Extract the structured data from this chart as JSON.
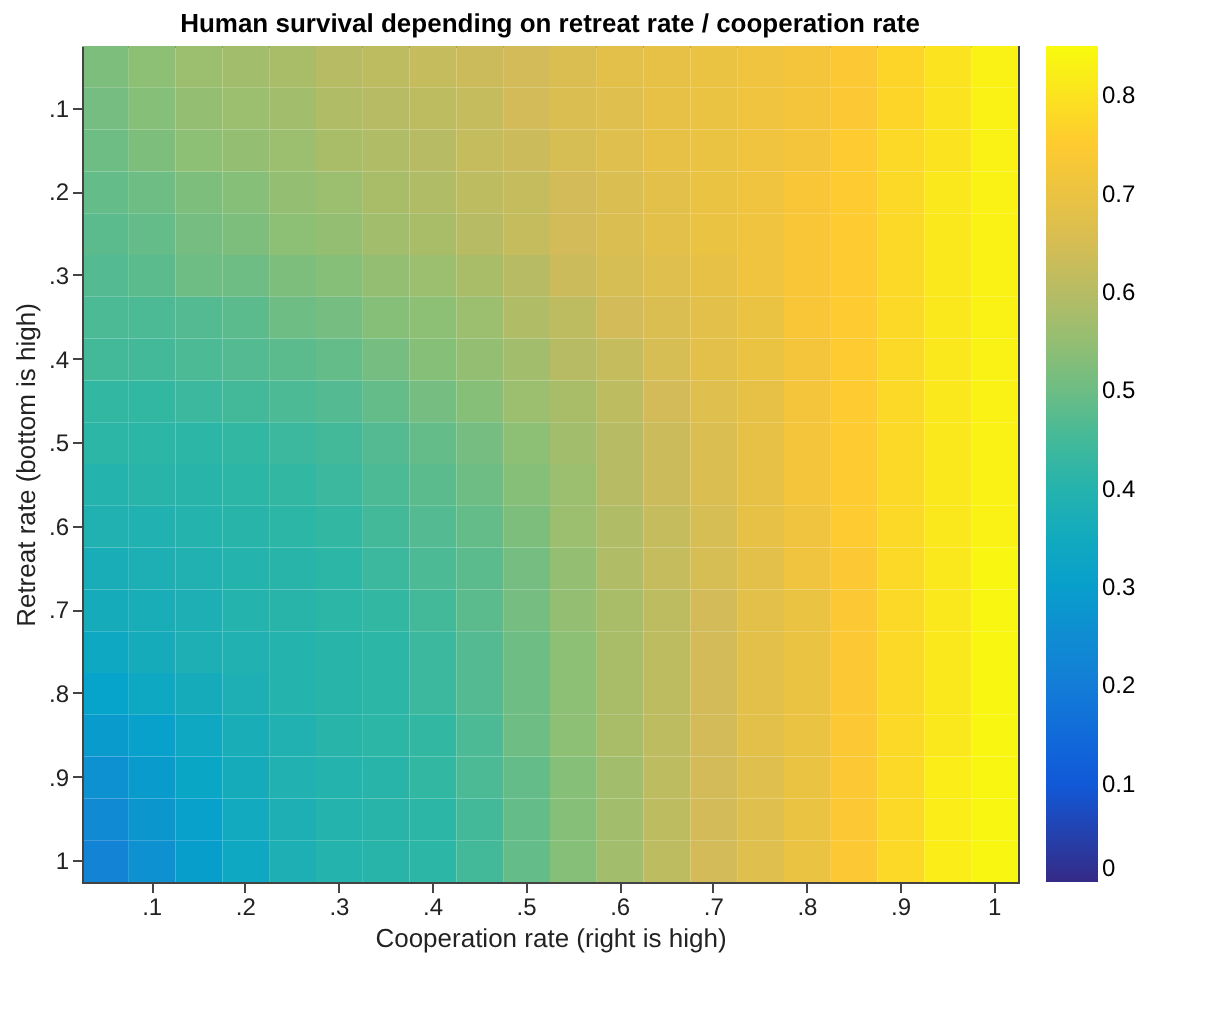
{
  "chart_data": {
    "type": "heatmap",
    "title": "Human survival depending on retreat rate / cooperation rate",
    "xlabel": "Cooperation rate (right is high)",
    "ylabel": "Retreat rate (bottom is high)",
    "categories": [
      null,
      ".1",
      null,
      ".2",
      null,
      ".3",
      null,
      ".4",
      null,
      ".5",
      null,
      ".6",
      null,
      ".7",
      null,
      ".8",
      null,
      ".9",
      null,
      "1"
    ],
    "y_categories": [
      null,
      ".1",
      null,
      ".2",
      null,
      ".3",
      null,
      ".4",
      null,
      ".5",
      null,
      ".6",
      null,
      ".7",
      null,
      ".8",
      null,
      ".9",
      null,
      "1"
    ],
    "cells": [
      [
        0.52,
        0.54,
        0.56,
        0.57,
        0.58,
        0.6,
        0.61,
        0.62,
        0.63,
        0.64,
        0.66,
        0.68,
        0.69,
        0.7,
        0.71,
        0.72,
        0.74,
        0.77,
        0.8,
        0.83
      ],
      [
        0.51,
        0.53,
        0.55,
        0.56,
        0.57,
        0.59,
        0.6,
        0.61,
        0.62,
        0.64,
        0.66,
        0.67,
        0.69,
        0.7,
        0.71,
        0.72,
        0.74,
        0.77,
        0.8,
        0.83
      ],
      [
        0.5,
        0.52,
        0.54,
        0.55,
        0.56,
        0.58,
        0.59,
        0.6,
        0.62,
        0.63,
        0.65,
        0.67,
        0.69,
        0.7,
        0.71,
        0.72,
        0.75,
        0.78,
        0.8,
        0.83
      ],
      [
        0.49,
        0.5,
        0.52,
        0.53,
        0.55,
        0.56,
        0.58,
        0.59,
        0.61,
        0.62,
        0.64,
        0.66,
        0.68,
        0.7,
        0.71,
        0.73,
        0.75,
        0.78,
        0.81,
        0.83
      ],
      [
        0.48,
        0.49,
        0.51,
        0.52,
        0.54,
        0.55,
        0.57,
        0.58,
        0.6,
        0.62,
        0.64,
        0.66,
        0.68,
        0.7,
        0.71,
        0.73,
        0.75,
        0.78,
        0.81,
        0.83
      ],
      [
        0.47,
        0.48,
        0.5,
        0.5,
        0.52,
        0.53,
        0.55,
        0.56,
        0.58,
        0.6,
        0.63,
        0.65,
        0.67,
        0.69,
        0.71,
        0.73,
        0.75,
        0.78,
        0.81,
        0.83
      ],
      [
        0.46,
        0.46,
        0.47,
        0.48,
        0.5,
        0.51,
        0.53,
        0.54,
        0.56,
        0.59,
        0.61,
        0.64,
        0.66,
        0.68,
        0.7,
        0.73,
        0.75,
        0.78,
        0.81,
        0.83
      ],
      [
        0.45,
        0.45,
        0.46,
        0.47,
        0.48,
        0.49,
        0.51,
        0.53,
        0.55,
        0.57,
        0.6,
        0.62,
        0.65,
        0.68,
        0.7,
        0.72,
        0.75,
        0.78,
        0.81,
        0.83
      ],
      [
        0.43,
        0.43,
        0.44,
        0.45,
        0.46,
        0.47,
        0.49,
        0.51,
        0.53,
        0.56,
        0.58,
        0.61,
        0.64,
        0.67,
        0.69,
        0.72,
        0.75,
        0.78,
        0.81,
        0.83
      ],
      [
        0.42,
        0.42,
        0.42,
        0.43,
        0.44,
        0.45,
        0.47,
        0.49,
        0.51,
        0.54,
        0.57,
        0.6,
        0.63,
        0.66,
        0.69,
        0.72,
        0.75,
        0.78,
        0.81,
        0.83
      ],
      [
        0.4,
        0.41,
        0.41,
        0.42,
        0.43,
        0.44,
        0.46,
        0.48,
        0.5,
        0.53,
        0.56,
        0.6,
        0.63,
        0.66,
        0.69,
        0.72,
        0.75,
        0.78,
        0.81,
        0.83
      ],
      [
        0.39,
        0.39,
        0.4,
        0.41,
        0.42,
        0.43,
        0.45,
        0.47,
        0.49,
        0.52,
        0.56,
        0.59,
        0.62,
        0.65,
        0.69,
        0.71,
        0.75,
        0.78,
        0.81,
        0.83
      ],
      [
        0.37,
        0.38,
        0.39,
        0.4,
        0.41,
        0.42,
        0.44,
        0.46,
        0.48,
        0.51,
        0.55,
        0.59,
        0.62,
        0.65,
        0.68,
        0.71,
        0.74,
        0.78,
        0.81,
        0.84
      ],
      [
        0.36,
        0.37,
        0.38,
        0.4,
        0.41,
        0.42,
        0.43,
        0.45,
        0.48,
        0.51,
        0.55,
        0.58,
        0.61,
        0.64,
        0.68,
        0.7,
        0.74,
        0.78,
        0.81,
        0.84
      ],
      [
        0.34,
        0.36,
        0.38,
        0.39,
        0.4,
        0.41,
        0.42,
        0.44,
        0.47,
        0.5,
        0.54,
        0.58,
        0.61,
        0.64,
        0.68,
        0.7,
        0.74,
        0.78,
        0.81,
        0.84
      ],
      [
        0.32,
        0.34,
        0.36,
        0.38,
        0.4,
        0.41,
        0.42,
        0.44,
        0.47,
        0.5,
        0.54,
        0.58,
        0.61,
        0.64,
        0.68,
        0.7,
        0.74,
        0.78,
        0.81,
        0.84
      ],
      [
        0.29,
        0.31,
        0.34,
        0.37,
        0.39,
        0.41,
        0.42,
        0.43,
        0.46,
        0.5,
        0.54,
        0.58,
        0.61,
        0.64,
        0.68,
        0.7,
        0.74,
        0.78,
        0.81,
        0.84
      ],
      [
        0.26,
        0.29,
        0.33,
        0.36,
        0.39,
        0.4,
        0.41,
        0.43,
        0.46,
        0.49,
        0.53,
        0.57,
        0.61,
        0.64,
        0.67,
        0.7,
        0.74,
        0.78,
        0.82,
        0.84
      ],
      [
        0.24,
        0.28,
        0.31,
        0.35,
        0.38,
        0.4,
        0.41,
        0.42,
        0.45,
        0.49,
        0.53,
        0.57,
        0.61,
        0.64,
        0.67,
        0.7,
        0.74,
        0.78,
        0.82,
        0.84
      ],
      [
        0.22,
        0.26,
        0.3,
        0.34,
        0.38,
        0.4,
        0.41,
        0.42,
        0.45,
        0.49,
        0.53,
        0.57,
        0.61,
        0.64,
        0.67,
        0.7,
        0.74,
        0.78,
        0.82,
        0.84
      ]
    ],
    "clim": [
      0,
      0.85
    ],
    "cticks": [
      0,
      0.1,
      0.2,
      0.3,
      0.4,
      0.5,
      0.6,
      0.7,
      0.8
    ]
  }
}
